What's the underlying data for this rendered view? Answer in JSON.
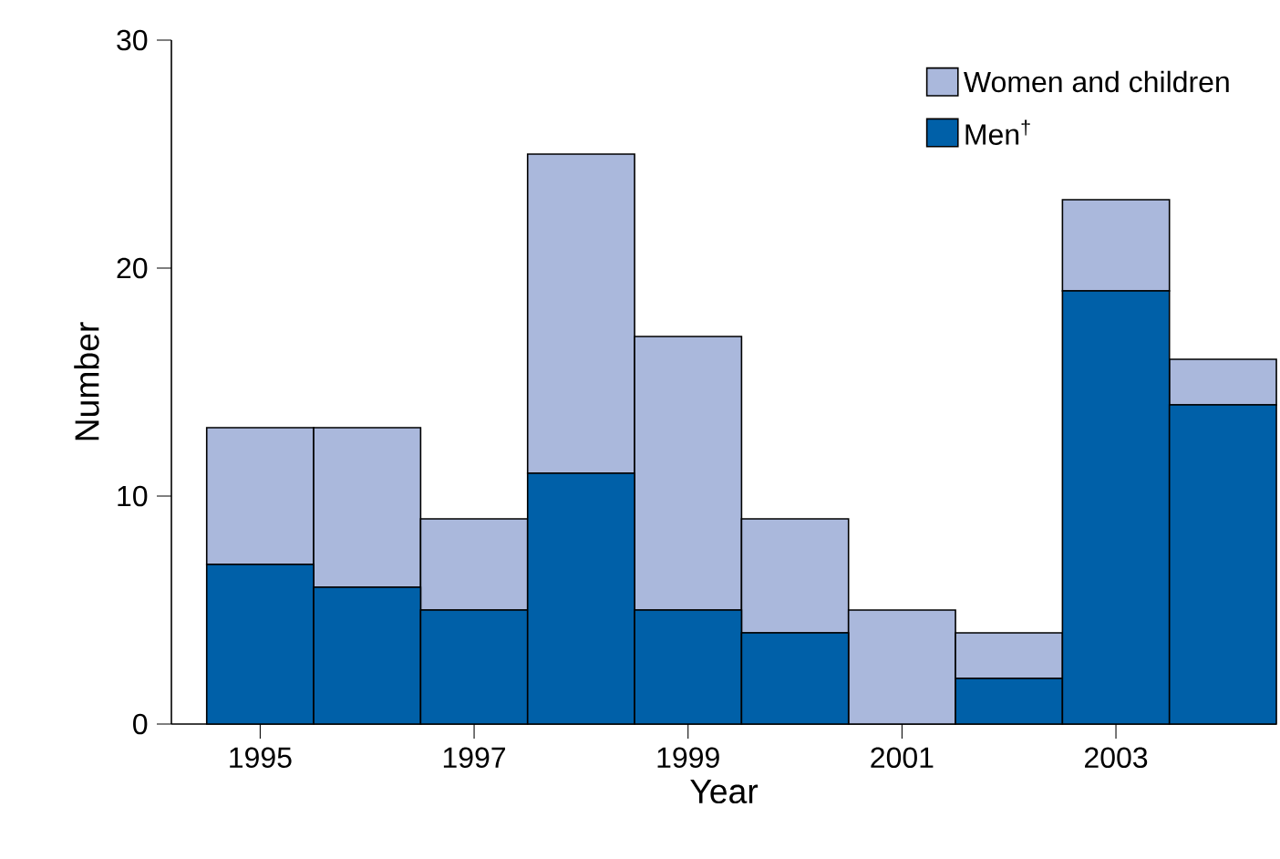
{
  "chart_data": {
    "type": "bar",
    "stacked": true,
    "xlabel": "Year",
    "ylabel": "Number",
    "categories": [
      "1995",
      null,
      "1997",
      null,
      "1999",
      null,
      "2001",
      null,
      "2003",
      null
    ],
    "series": [
      {
        "name": "Men$^{†}$",
        "color": "#0060a8",
        "values": [
          7,
          6,
          5,
          11,
          5,
          4,
          0,
          2,
          19,
          14
        ]
      },
      {
        "name": "Women and children",
        "color": "#aab8dc",
        "values": [
          6,
          7,
          4,
          14,
          12,
          5,
          5,
          2,
          4,
          2
        ]
      }
    ],
    "ylim": [
      0,
      30
    ],
    "yticks": [
      0,
      10,
      20,
      30
    ],
    "legend": "top right",
    "grid": false
  }
}
